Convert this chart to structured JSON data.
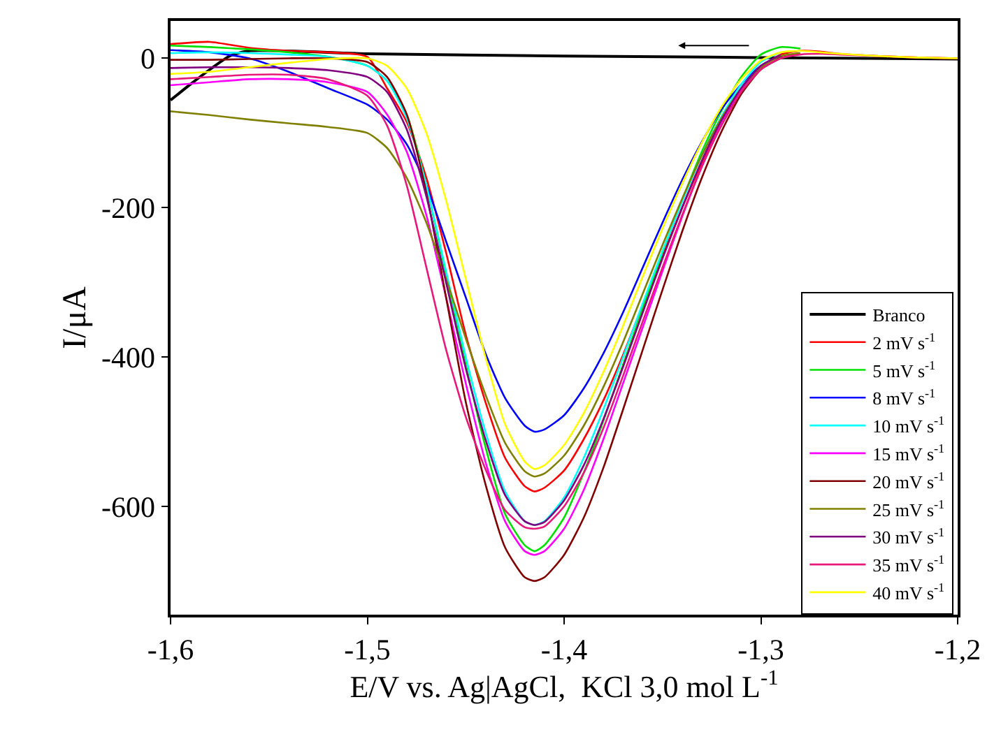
{
  "chart_data": {
    "type": "line",
    "xlabel": "E/V vs. Ag|AgCl,  KCl 3,0 mol L$^{-1}$",
    "ylabel": "I/μA",
    "x": [
      -1.6,
      -1.58,
      -1.56,
      -1.54,
      -1.52,
      -1.5,
      -1.49,
      -1.48,
      -1.47,
      -1.46,
      -1.45,
      -1.44,
      -1.43,
      -1.42,
      -1.415,
      -1.41,
      -1.4,
      -1.39,
      -1.38,
      -1.37,
      -1.36,
      -1.35,
      -1.34,
      -1.33,
      -1.32,
      -1.31,
      -1.3,
      -1.29,
      -1.28,
      -1.27,
      -1.26,
      -1.24,
      -1.22,
      -1.2
    ],
    "series": [
      {
        "name": "Branco",
        "color": "#000000",
        "x": [
          -1.6,
          -1.59,
          -1.58,
          -1.57,
          -1.56,
          -1.5,
          -1.4,
          -1.3,
          -1.2
        ],
        "values": [
          -56,
          -35,
          -15,
          3,
          10,
          6,
          3,
          1,
          -1
        ]
      },
      {
        "name": "2 mV s$^{-1}$",
        "color": "#ff0000",
        "values": [
          19,
          22,
          14,
          10,
          8,
          2,
          -40,
          -85,
          -160,
          -260,
          -370,
          -460,
          -535,
          -573,
          -580,
          -575,
          -552,
          -510,
          -458,
          -397,
          -330,
          -265,
          -200,
          -140,
          -88,
          -45,
          -12,
          5,
          10,
          9,
          6,
          3,
          1,
          0
        ]
      },
      {
        "name": "5 mV s$^{-1}$",
        "color": "#00e000",
        "values": [
          17,
          15,
          12,
          8,
          2,
          -10,
          -30,
          -75,
          -170,
          -290,
          -410,
          -520,
          -610,
          -652,
          -660,
          -652,
          -615,
          -555,
          -485,
          -410,
          -335,
          -260,
          -190,
          -125,
          -70,
          -25,
          5,
          15,
          13,
          null,
          null,
          null,
          null,
          null
        ]
      },
      {
        "name": "8 mV s$^{-1}$",
        "color": "#0000ff",
        "values": [
          11,
          8,
          0,
          -18,
          -40,
          -62,
          -82,
          -115,
          -170,
          -245,
          -320,
          -395,
          -455,
          -492,
          -500,
          -497,
          -478,
          -442,
          -395,
          -340,
          -280,
          -220,
          -163,
          -112,
          -68,
          -35,
          -10,
          4,
          null,
          null,
          null,
          null,
          null,
          null
        ]
      },
      {
        "name": "10 mV s$^{-1}$",
        "color": "#00ffff",
        "values": [
          7,
          8,
          7,
          5,
          2,
          -10,
          -30,
          -80,
          -170,
          -285,
          -400,
          -500,
          -580,
          -620,
          -625,
          -620,
          -588,
          -535,
          -470,
          -400,
          -328,
          -258,
          -192,
          -130,
          -78,
          -35,
          -5,
          8,
          null,
          null,
          null,
          null,
          null,
          null
        ]
      },
      {
        "name": "15 mV s$^{-1}$",
        "color": "#ff00ff",
        "values": [
          -36,
          -32,
          -28,
          -28,
          -32,
          -45,
          -75,
          -125,
          -210,
          -320,
          -435,
          -540,
          -620,
          -660,
          -665,
          -660,
          -630,
          -578,
          -510,
          -435,
          -360,
          -285,
          -212,
          -145,
          -88,
          -42,
          -12,
          null,
          null,
          null,
          null,
          null,
          null,
          null
        ]
      },
      {
        "name": "20 mV s$^{-1}$",
        "color": "#800000",
        "values": [
          -2,
          -2,
          -1,
          0,
          0,
          -5,
          -25,
          -75,
          -180,
          -320,
          -460,
          -570,
          -655,
          -695,
          -700,
          -695,
          -665,
          -615,
          -548,
          -470,
          -390,
          -310,
          -232,
          -160,
          -98,
          -48,
          -15,
          0,
          6,
          null,
          null,
          null,
          null,
          null
        ]
      },
      {
        "name": "25 mV s$^{-1}$",
        "color": "#808000",
        "values": [
          -71,
          -76,
          -82,
          -87,
          -92,
          -100,
          -120,
          -160,
          -220,
          -295,
          -375,
          -450,
          -515,
          -553,
          -560,
          -556,
          -532,
          -492,
          -440,
          -380,
          -315,
          -250,
          -188,
          -130,
          -80,
          -40,
          -12,
          3,
          7,
          null,
          null,
          null,
          null,
          null
        ]
      },
      {
        "name": "30 mV s$^{-1}$",
        "color": "#800080",
        "values": [
          -13,
          -12,
          -12,
          -13,
          -16,
          -25,
          -45,
          -95,
          -185,
          -300,
          -415,
          -510,
          -585,
          -620,
          -625,
          -621,
          -592,
          -545,
          -483,
          -413,
          -340,
          -268,
          -200,
          -137,
          -83,
          -40,
          -10,
          4,
          null,
          null,
          null,
          null,
          null,
          null
        ]
      },
      {
        "name": "35 mV s$^{-1}$",
        "color": "#e8177a",
        "values": [
          -28,
          -25,
          -22,
          -22,
          -28,
          -50,
          -90,
          -170,
          -280,
          -390,
          -480,
          -550,
          -605,
          -628,
          -630,
          -627,
          -600,
          -555,
          -495,
          -425,
          -352,
          -280,
          -210,
          -145,
          -90,
          -45,
          -15,
          0,
          5,
          6,
          5,
          3,
          1,
          0
        ]
      },
      {
        "name": "40 mV s$^{-1}$",
        "color": "#ffff00",
        "values": [
          -21,
          -18,
          -12,
          -6,
          -1,
          0,
          -10,
          -40,
          -100,
          -190,
          -295,
          -400,
          -490,
          -540,
          -550,
          -545,
          -518,
          -475,
          -420,
          -358,
          -292,
          -228,
          -168,
          -113,
          -65,
          -28,
          -3,
          8,
          10,
          8,
          6,
          3,
          1,
          0
        ]
      }
    ],
    "xlim": [
      -1.6,
      -1.2
    ],
    "xticks": [
      {
        "value": -1.6,
        "label": "-1,6"
      },
      {
        "value": -1.5,
        "label": "-1,5"
      },
      {
        "value": -1.4,
        "label": "-1,4"
      },
      {
        "value": -1.3,
        "label": "-1,3"
      },
      {
        "value": -1.2,
        "label": "-1,2"
      }
    ],
    "ylim": [
      -745,
      50
    ],
    "yticks": [
      0,
      -200,
      -400,
      -600
    ],
    "legend": "right"
  }
}
